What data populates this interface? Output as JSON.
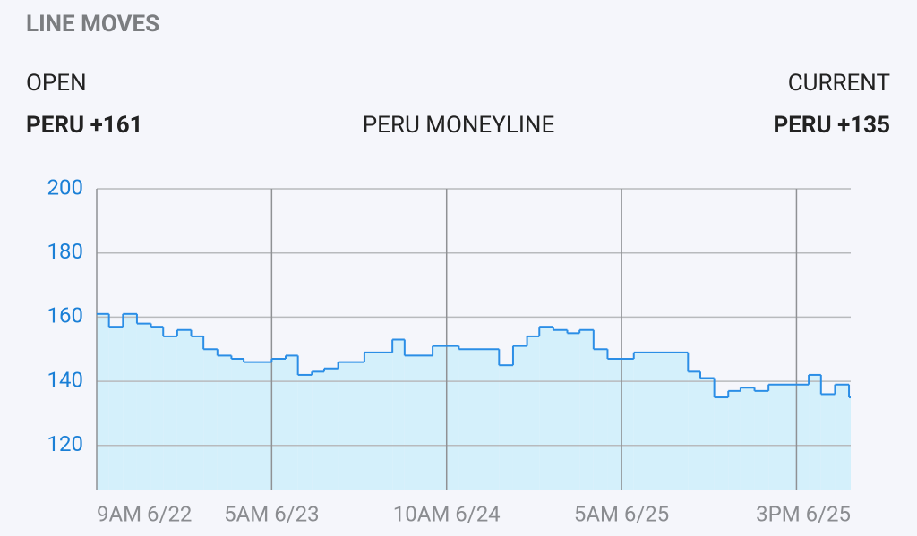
{
  "header": {
    "title": "LINE MOVES",
    "open_label": "OPEN",
    "open_value": "PERU +161",
    "market": "PERU MONEYLINE",
    "current_label": "CURRENT",
    "current_value": "PERU +135"
  },
  "chart_data": {
    "type": "step",
    "line_color": "#2b8ee6",
    "fill_color": "#d4f0fb",
    "grid": true,
    "x": [
      0,
      0.07,
      0.15,
      0.23,
      0.31,
      0.38,
      0.46,
      0.54,
      0.61,
      0.69,
      0.77,
      0.84,
      1.0,
      1.08,
      1.15,
      1.23,
      1.3,
      1.38,
      1.53,
      1.69,
      1.76,
      1.92,
      2.07,
      2.3,
      2.38,
      2.46,
      2.53,
      2.61,
      2.69,
      2.76,
      2.84,
      2.92,
      3.07,
      3.38,
      3.45,
      3.53,
      3.61,
      3.68,
      3.76,
      3.84,
      4.07,
      4.14,
      4.22,
      4.3
    ],
    "values": [
      161,
      157,
      161,
      158,
      157,
      154,
      156,
      154,
      150,
      148,
      147,
      146,
      147,
      148,
      142,
      143,
      144,
      146,
      149,
      153,
      148,
      151,
      150,
      145,
      151,
      154,
      157,
      156,
      155,
      156,
      150,
      147,
      149,
      143,
      141,
      135,
      137,
      138,
      137,
      139,
      142,
      136,
      139,
      135
    ],
    "xlim": [
      0,
      4.31
    ],
    "xticks": [
      {
        "value": 0,
        "label": "9AM 6/22"
      },
      {
        "value": 1,
        "label": "5AM 6/23"
      },
      {
        "value": 2,
        "label": "10AM 6/24"
      },
      {
        "value": 3,
        "label": "5AM 6/25"
      },
      {
        "value": 4,
        "label": "3PM 6/25"
      }
    ],
    "ylim": [
      106,
      200
    ],
    "yticks": [
      120,
      140,
      160,
      180,
      200
    ]
  }
}
